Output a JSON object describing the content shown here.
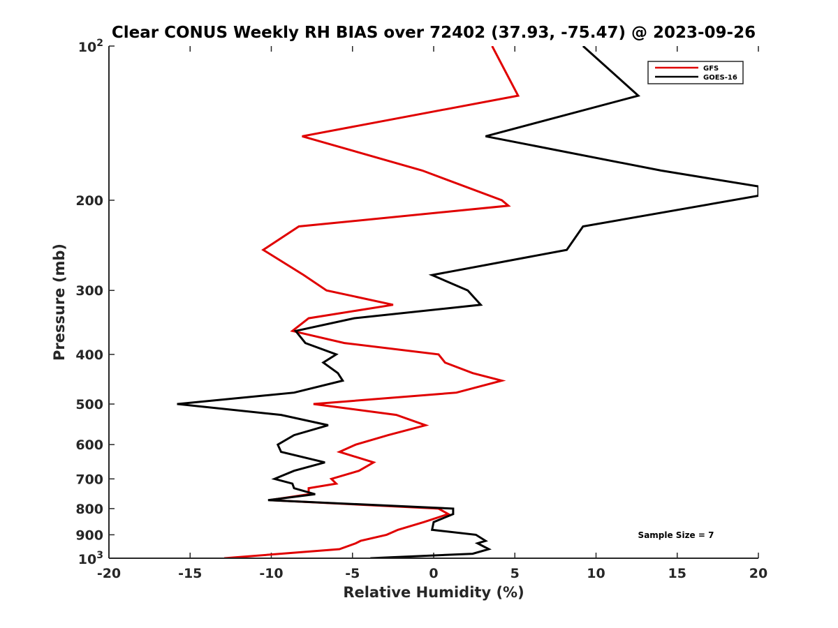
{
  "chart_data": {
    "type": "line",
    "title": "Clear CONUS Weekly RH BIAS over 72402 (37.93, -75.47) @ 2023-09-26",
    "xlabel": "Relative Humidity (%)",
    "ylabel": "Pressure (mb)",
    "xlim": [
      -20,
      20
    ],
    "ylim": [
      100,
      1000
    ],
    "yscale": "log",
    "y_reversed": true,
    "xticks": [
      -20,
      -15,
      -10,
      -5,
      0,
      5,
      10,
      15,
      20
    ],
    "xtick_labels": [
      "-20",
      "-15",
      "-10",
      "-5",
      "0",
      "5",
      "10",
      "15",
      "20"
    ],
    "yticks": [
      200,
      300,
      400,
      500,
      600,
      700,
      800,
      900
    ],
    "ytick_labels": [
      "200",
      "300",
      "400",
      "500",
      "600",
      "700",
      "800",
      "900"
    ],
    "ytick_end_labels": [
      {
        "value": 100,
        "base": "10",
        "exp": "2"
      },
      {
        "value": 1000,
        "base": "10",
        "exp": "3"
      }
    ],
    "legend": {
      "position": "top-right"
    },
    "annotation": "Sample Size = 7",
    "series": [
      {
        "name": "GFS",
        "color": "#e00000",
        "points": [
          [
            3.6,
            100
          ],
          [
            5.2,
            125
          ],
          [
            -8.1,
            150
          ],
          [
            -0.7,
            175
          ],
          [
            4.2,
            200
          ],
          [
            4.6,
            205
          ],
          [
            -8.3,
            225
          ],
          [
            -10.5,
            250
          ],
          [
            -8.0,
            280
          ],
          [
            -6.6,
            300
          ],
          [
            -2.5,
            320
          ],
          [
            -7.7,
            340
          ],
          [
            -8.7,
            360
          ],
          [
            -5.5,
            380
          ],
          [
            0.3,
            400
          ],
          [
            0.7,
            415
          ],
          [
            2.4,
            435
          ],
          [
            4.2,
            450
          ],
          [
            1.4,
            475
          ],
          [
            -7.4,
            500
          ],
          [
            -2.3,
            525
          ],
          [
            -0.5,
            550
          ],
          [
            -2.8,
            575
          ],
          [
            -4.8,
            600
          ],
          [
            -5.8,
            620
          ],
          [
            -3.7,
            650
          ],
          [
            -4.6,
            675
          ],
          [
            -6.3,
            700
          ],
          [
            -6.0,
            715
          ],
          [
            -7.7,
            730
          ],
          [
            -7.7,
            750
          ],
          [
            -10.1,
            770
          ],
          [
            0.3,
            800
          ],
          [
            0.9,
            820
          ],
          [
            -0.6,
            850
          ],
          [
            -2.2,
            880
          ],
          [
            -2.9,
            900
          ],
          [
            -4.5,
            925
          ],
          [
            -4.8,
            935
          ],
          [
            -5.8,
            960
          ],
          [
            -12.9,
            1000
          ]
        ]
      },
      {
        "name": "GOES-16",
        "color": "#000000",
        "points": [
          [
            9.2,
            100
          ],
          [
            12.6,
            125
          ],
          [
            3.2,
            150
          ],
          [
            14.0,
            175
          ],
          [
            20,
            188
          ],
          [
            20,
            196
          ],
          [
            9.2,
            225
          ],
          [
            8.2,
            250
          ],
          [
            -0.1,
            280
          ],
          [
            2.1,
            300
          ],
          [
            2.9,
            320
          ],
          [
            -4.9,
            340
          ],
          [
            -8.5,
            360
          ],
          [
            -7.9,
            380
          ],
          [
            -6.0,
            400
          ],
          [
            -6.8,
            415
          ],
          [
            -5.9,
            435
          ],
          [
            -5.6,
            450
          ],
          [
            -8.6,
            475
          ],
          [
            -15.8,
            500
          ],
          [
            -9.4,
            525
          ],
          [
            -6.5,
            550
          ],
          [
            -8.6,
            575
          ],
          [
            -9.6,
            600
          ],
          [
            -9.4,
            620
          ],
          [
            -6.7,
            650
          ],
          [
            -8.6,
            675
          ],
          [
            -9.8,
            700
          ],
          [
            -8.7,
            715
          ],
          [
            -8.6,
            730
          ],
          [
            -7.3,
            750
          ],
          [
            -10.2,
            770
          ],
          [
            1.2,
            800
          ],
          [
            1.2,
            820
          ],
          [
            0.0,
            850
          ],
          [
            -0.1,
            880
          ],
          [
            2.6,
            900
          ],
          [
            3.2,
            925
          ],
          [
            2.7,
            935
          ],
          [
            3.4,
            960
          ],
          [
            2.4,
            980
          ],
          [
            -3.9,
            1000
          ]
        ]
      }
    ]
  }
}
